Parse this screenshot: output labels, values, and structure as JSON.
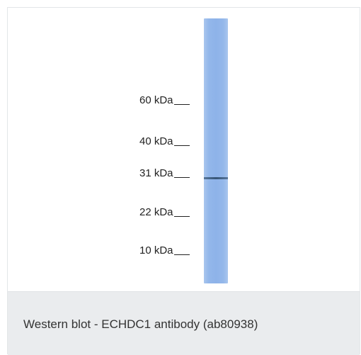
{
  "figure": {
    "markers": [
      {
        "label": "60 kDa"
      },
      {
        "label": "40 kDa"
      },
      {
        "label": "31 kDa"
      },
      {
        "label": "22 kDa"
      },
      {
        "label": "10 kDa"
      }
    ],
    "lane_color": "#8eb3e9",
    "band_color": "#2d4a6a"
  },
  "caption": {
    "text": "Western blot - ECHDC1 antibody (ab80938)"
  }
}
